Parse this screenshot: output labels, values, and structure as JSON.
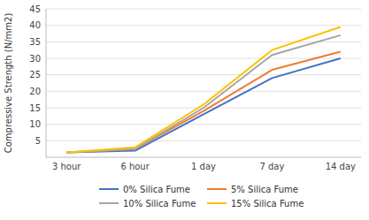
{
  "chart_data": {
    "type": "line",
    "y_label": "Compressive Strength (N/mm2)",
    "categories": [
      "3 hour",
      "6 hour",
      "1 day",
      "7 day",
      "14 day"
    ],
    "series": [
      {
        "name": "0% Silica Fume",
        "color": "#4472C4",
        "values": [
          1.5,
          2.0,
          13.0,
          24.0,
          30.0
        ]
      },
      {
        "name": "5% Silica Fume",
        "color": "#ED7D31",
        "values": [
          1.5,
          2.5,
          14.0,
          26.5,
          32.0
        ]
      },
      {
        "name": "10% Silica Fume",
        "color": "#A5A5A5",
        "values": [
          1.5,
          2.5,
          15.0,
          31.0,
          37.0
        ]
      },
      {
        "name": "15% Silica Fume",
        "color": "#FFC000",
        "values": [
          1.5,
          3.0,
          16.0,
          32.5,
          39.5
        ]
      }
    ],
    "ylim": [
      0,
      45
    ],
    "yticks": [
      5,
      10,
      15,
      20,
      25,
      30,
      35,
      40,
      45
    ],
    "grid": true,
    "legend": "bottom"
  }
}
